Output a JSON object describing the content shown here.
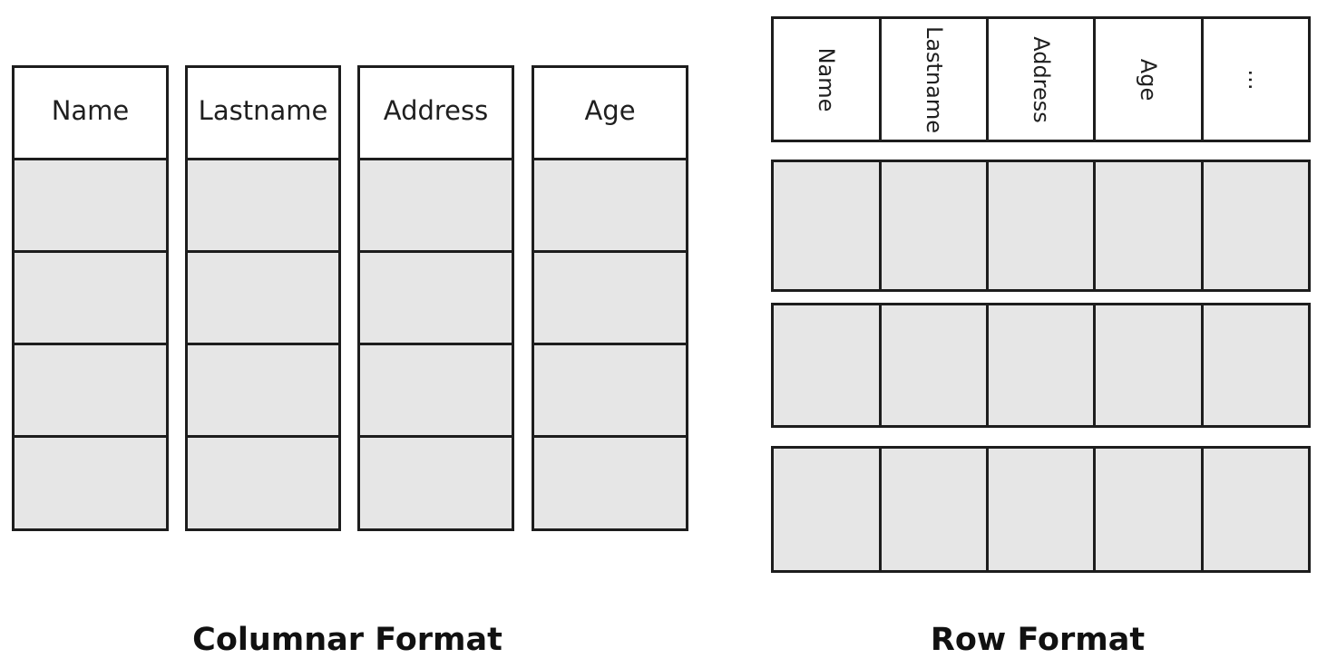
{
  "columnar": {
    "caption": "Columnar Format",
    "headers": [
      "Name",
      "Lastname",
      "Address",
      "Age"
    ],
    "data_rows": 4
  },
  "row": {
    "caption": "Row Format",
    "headers": [
      "Name",
      "Lastname",
      "Address",
      "Age",
      "..."
    ],
    "data_rows": 3
  },
  "colors": {
    "border": "#1d1d1d",
    "header_fill": "#ffffff",
    "data_fill": "#e6e6e6"
  }
}
